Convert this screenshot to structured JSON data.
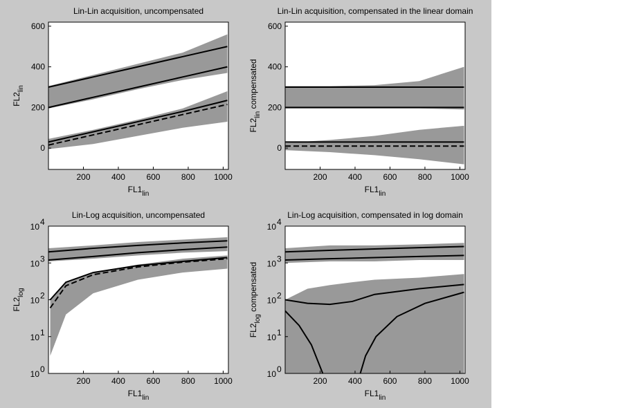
{
  "chart_data": [
    {
      "type": "line",
      "title": "Lin-Lin acquisition, uncompensated",
      "xlabel": {
        "text": "FL1",
        "sub": "lin"
      },
      "ylabel": {
        "text": "FL2",
        "sub": "lin"
      },
      "xlim": [
        0,
        1030
      ],
      "ylim": [
        -105,
        620
      ],
      "xticks": [
        200,
        400,
        600,
        800,
        1000
      ],
      "yticks": [
        0,
        200,
        400,
        600
      ],
      "ylog": false,
      "series": [
        {
          "color": "#999999",
          "x": [
            0,
            256,
            512,
            768,
            1024
          ],
          "upper": [
            305,
            360,
            415,
            470,
            560
          ],
          "lower": [
            195,
            240,
            290,
            335,
            370
          ]
        },
        {
          "color": "#999999",
          "x": [
            0,
            256,
            512,
            768,
            1024
          ],
          "upper": [
            45,
            90,
            140,
            195,
            280
          ],
          "lower": [
            -5,
            20,
            60,
            100,
            130
          ]
        },
        {
          "color": "#000000",
          "dash": false,
          "x": [
            0,
            256,
            512,
            768,
            1024
          ],
          "values": [
            300,
            350,
            400,
            450,
            500
          ]
        },
        {
          "color": "#000000",
          "dash": false,
          "x": [
            0,
            256,
            512,
            768,
            1024
          ],
          "values": [
            200,
            250,
            300,
            350,
            400
          ]
        },
        {
          "color": "#000000",
          "dash": false,
          "x": [
            0,
            256,
            512,
            768,
            1024
          ],
          "values": [
            30,
            80,
            130,
            180,
            235
          ]
        },
        {
          "color": "#000000",
          "dash": true,
          "x": [
            0,
            256,
            512,
            768,
            1024
          ],
          "values": [
            15,
            65,
            115,
            165,
            215
          ]
        }
      ]
    },
    {
      "type": "line",
      "title": "Lin-Lin acquisition, compensated in the linear domain",
      "xlabel": {
        "text": "FL1",
        "sub": "lin"
      },
      "ylabel": {
        "text": "FL2",
        "sub": "lin",
        "suffix": " compensated"
      },
      "xlim": [
        0,
        1030
      ],
      "ylim": [
        -105,
        620
      ],
      "xticks": [
        200,
        400,
        600,
        800,
        1000
      ],
      "yticks": [
        0,
        200,
        400,
        600
      ],
      "ylog": false,
      "series": [
        {
          "color": "#999999",
          "x": [
            0,
            256,
            512,
            768,
            1024
          ],
          "upper": [
            305,
            305,
            310,
            330,
            400
          ],
          "lower": [
            195,
            195,
            195,
            195,
            190
          ]
        },
        {
          "color": "#999999",
          "x": [
            0,
            256,
            512,
            768,
            1024
          ],
          "upper": [
            25,
            40,
            60,
            90,
            110
          ],
          "lower": [
            -10,
            -20,
            -35,
            -55,
            -80
          ]
        },
        {
          "color": "#000000",
          "dash": false,
          "x": [
            0,
            1024
          ],
          "values": [
            300,
            300
          ]
        },
        {
          "color": "#000000",
          "dash": false,
          "x": [
            0,
            1024
          ],
          "values": [
            200,
            200
          ]
        },
        {
          "color": "#000000",
          "dash": false,
          "x": [
            0,
            1024
          ],
          "values": [
            30,
            30
          ]
        },
        {
          "color": "#000000",
          "dash": true,
          "x": [
            0,
            1024
          ],
          "values": [
            10,
            10
          ]
        }
      ]
    },
    {
      "type": "line",
      "title": "Lin-Log acquisition, uncompensated",
      "xlabel": {
        "text": "FL1",
        "sub": "lin"
      },
      "ylabel": {
        "text": "FL2",
        "sub": "log"
      },
      "xlim": [
        0,
        1030
      ],
      "ylim": [
        1,
        10000
      ],
      "xticks": [
        200,
        400,
        600,
        800,
        1000
      ],
      "ylog": true,
      "yticks": [
        {
          "value": 1,
          "label": "10",
          "power": "0"
        },
        {
          "value": 10,
          "label": "10",
          "power": "1"
        },
        {
          "value": 100,
          "label": "10",
          "power": "2"
        },
        {
          "value": 1000,
          "label": "10",
          "power": "3"
        },
        {
          "value": 10000,
          "label": "10",
          "power": "4"
        }
      ],
      "series": [
        {
          "color": "#999999",
          "x": [
            0,
            256,
            512,
            768,
            1024
          ],
          "upper": [
            2500,
            3000,
            3700,
            4300,
            5000
          ],
          "lower": [
            1100,
            1300,
            1600,
            1900,
            2100
          ]
        },
        {
          "color": "#999999",
          "x": [
            10,
            100,
            256,
            512,
            768,
            1024
          ],
          "upper": [
            100,
            300,
            550,
            900,
            1300,
            1600
          ],
          "lower": [
            3,
            40,
            150,
            350,
            550,
            700
          ]
        },
        {
          "color": "#000000",
          "dash": false,
          "x": [
            0,
            256,
            512,
            768,
            1024
          ],
          "values": [
            2000,
            2500,
            3000,
            3500,
            4000
          ]
        },
        {
          "color": "#000000",
          "dash": false,
          "x": [
            0,
            256,
            512,
            768,
            1024
          ],
          "values": [
            1200,
            1500,
            1900,
            2300,
            2700
          ]
        },
        {
          "color": "#000000",
          "dash": false,
          "x": [
            10,
            100,
            256,
            512,
            768,
            1024
          ],
          "values": [
            100,
            300,
            550,
            850,
            1100,
            1400
          ]
        },
        {
          "color": "#000000",
          "dash": true,
          "x": [
            10,
            100,
            256,
            512,
            768,
            1024
          ],
          "values": [
            60,
            240,
            480,
            780,
            1050,
            1300
          ]
        }
      ]
    },
    {
      "type": "line",
      "title": "Lin-Log acquisition, compensated in log domain",
      "xlabel": {
        "text": "FL1",
        "sub": "lin"
      },
      "ylabel": {
        "text": "FL2",
        "sub": "log",
        "suffix": " compensated"
      },
      "xlim": [
        0,
        1030
      ],
      "ylim": [
        1,
        10000
      ],
      "xticks": [
        200,
        400,
        600,
        800,
        1000
      ],
      "ylog": true,
      "yticks": [
        {
          "value": 1,
          "label": "10",
          "power": "0"
        },
        {
          "value": 10,
          "label": "10",
          "power": "1"
        },
        {
          "value": 100,
          "label": "10",
          "power": "2"
        },
        {
          "value": 1000,
          "label": "10",
          "power": "3"
        },
        {
          "value": 10000,
          "label": "10",
          "power": "4"
        }
      ],
      "series": [
        {
          "color": "#999999",
          "x": [
            0,
            256,
            512,
            768,
            1024
          ],
          "upper": [
            2500,
            3000,
            3000,
            3200,
            3500
          ],
          "lower": [
            1000,
            1100,
            1100,
            1200,
            1200
          ]
        },
        {
          "color": "#999999",
          "x": [
            0,
            128,
            256,
            384,
            512,
            768,
            1024
          ],
          "upper": [
            100,
            200,
            250,
            300,
            350,
            400,
            500
          ],
          "lower": [
            1,
            1,
            1,
            1,
            1,
            1,
            1
          ]
        },
        {
          "color": "#000000",
          "dash": false,
          "x": [
            0,
            256,
            512,
            768,
            1024
          ],
          "values": [
            2000,
            2200,
            2400,
            2600,
            2800
          ]
        },
        {
          "color": "#000000",
          "dash": false,
          "x": [
            0,
            256,
            512,
            768,
            1024
          ],
          "values": [
            1200,
            1300,
            1400,
            1500,
            1600
          ]
        },
        {
          "color": "#000000",
          "dash": false,
          "x": [
            0,
            128,
            256,
            384,
            512,
            768,
            1024
          ],
          "values": [
            100,
            80,
            75,
            90,
            140,
            200,
            260
          ]
        },
        {
          "color": "#000000",
          "dash": false,
          "x": [
            0,
            80,
            150,
            190,
            215
          ],
          "values": [
            50,
            20,
            6,
            2,
            1
          ]
        },
        {
          "color": "#000000",
          "dash": false,
          "x": [
            430,
            460,
            520,
            640,
            800,
            1024
          ],
          "values": [
            1,
            3,
            10,
            35,
            80,
            160
          ]
        }
      ]
    }
  ]
}
